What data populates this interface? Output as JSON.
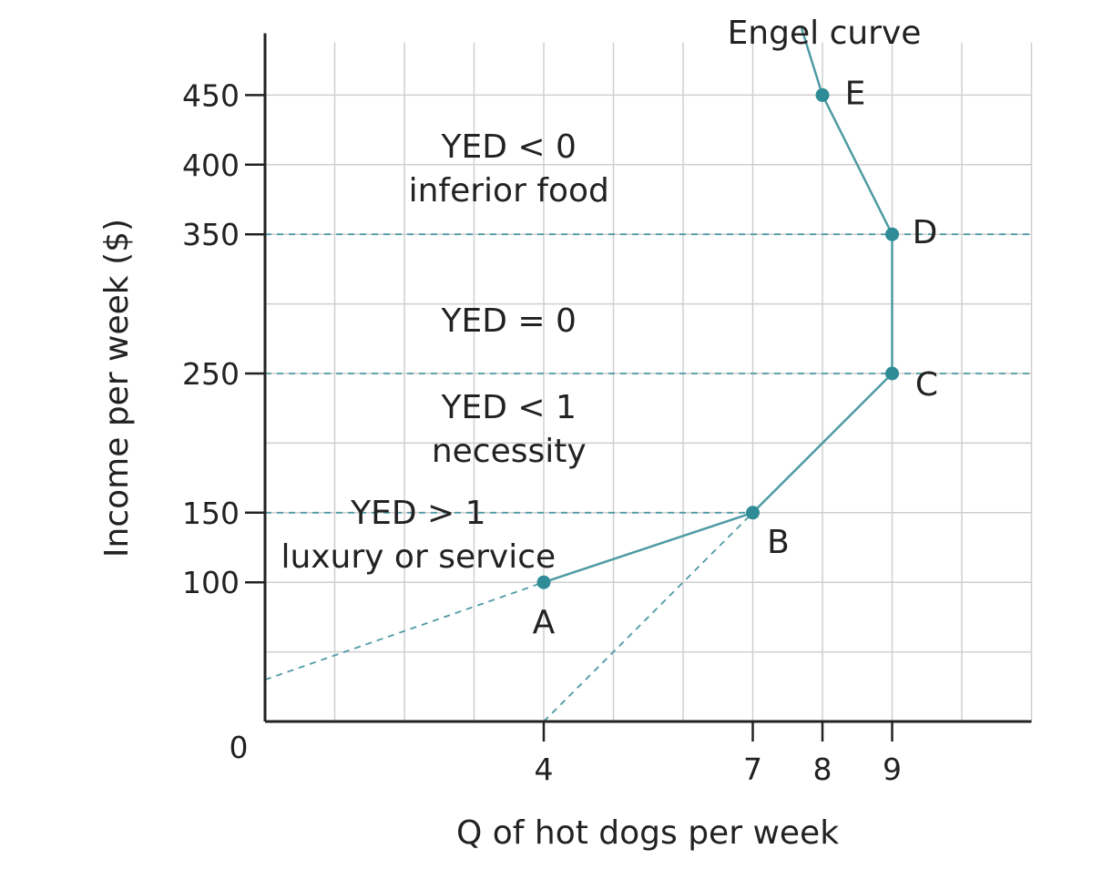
{
  "chart_data": {
    "type": "line",
    "title": "",
    "curve_label": "Engel curve",
    "xlabel": "Q of hot dogs per week",
    "ylabel": "Income per week ($)",
    "origin_label": "0",
    "xlim": [
      0,
      11
    ],
    "ylim": [
      0,
      480
    ],
    "x_ticks": [
      4,
      7,
      8,
      9
    ],
    "y_ticks": [
      100,
      150,
      250,
      350,
      400,
      450
    ],
    "grid": true,
    "colors": {
      "curve": "#4e9aa4",
      "point": "#2f8b96",
      "grid": "#cfcfcf",
      "axis": "#222222"
    },
    "series": [
      {
        "name": "Engel curve",
        "points": [
          {
            "label": "A",
            "x": 4,
            "y": 100
          },
          {
            "label": "B",
            "x": 7,
            "y": 150
          },
          {
            "label": "C",
            "x": 9,
            "y": 250
          },
          {
            "label": "D",
            "x": 9,
            "y": 350
          },
          {
            "label": "E",
            "x": 8,
            "y": 450
          }
        ],
        "extension_above": {
          "x": 7.7,
          "y": 498
        }
      }
    ],
    "guide_lines": [
      {
        "from": [
          0,
          150
        ],
        "to": [
          7,
          150
        ]
      },
      {
        "from": [
          0,
          250
        ],
        "to": [
          11,
          250
        ]
      },
      {
        "from": [
          0,
          350
        ],
        "to": [
          11,
          350
        ]
      },
      {
        "from": [
          0,
          30
        ],
        "to": [
          4,
          100
        ]
      },
      {
        "from": [
          4,
          0
        ],
        "to": [
          7,
          150
        ]
      }
    ],
    "annotations": [
      {
        "lines": [
          "YED < 0",
          "inferior food"
        ],
        "x": 3.5,
        "y": 405
      },
      {
        "lines": [
          "YED = 0"
        ],
        "x": 3.5,
        "y": 280
      },
      {
        "lines": [
          "YED < 1",
          "necessity"
        ],
        "x": 3.5,
        "y": 218
      },
      {
        "lines": [
          "YED > 1",
          "luxury or service"
        ],
        "x": 2.2,
        "y": 142
      }
    ]
  }
}
